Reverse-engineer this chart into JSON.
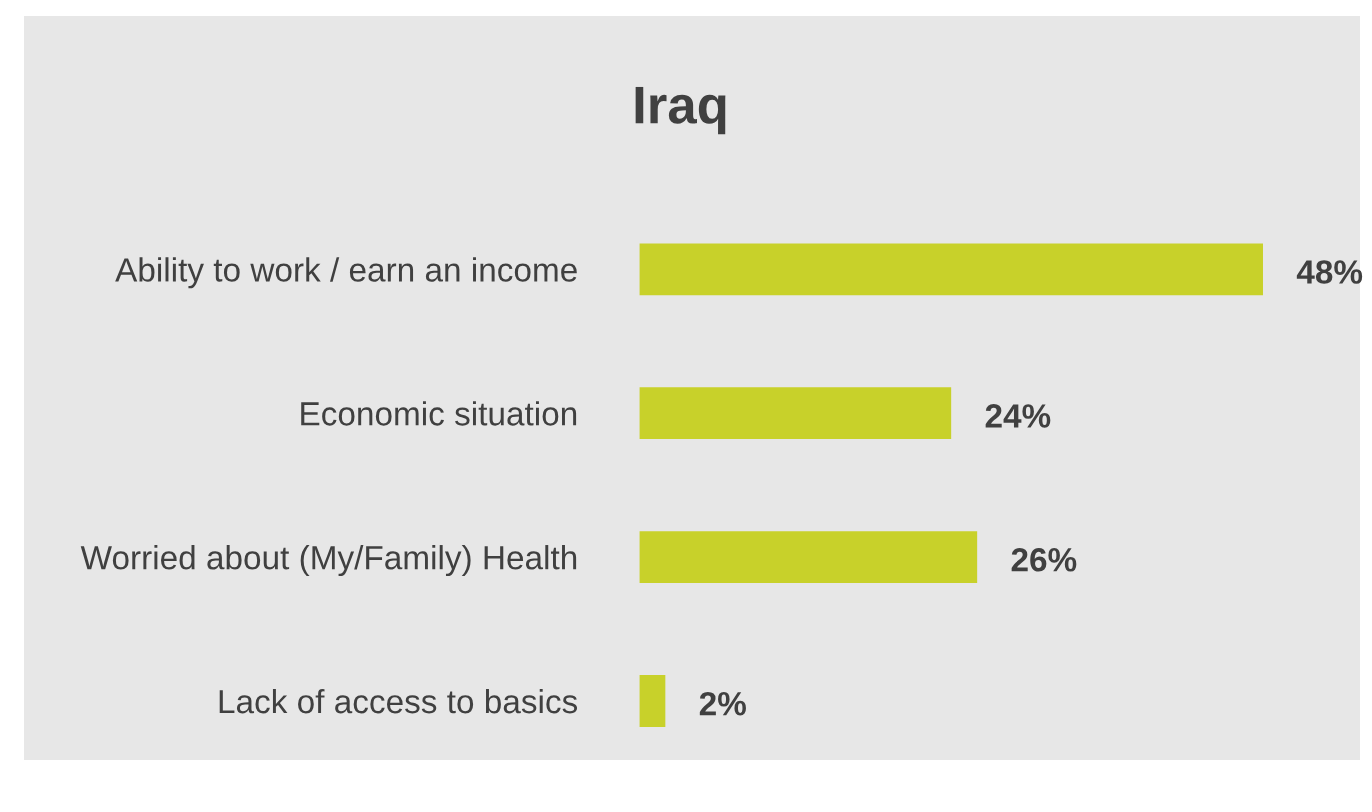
{
  "chart_data": {
    "type": "bar",
    "orientation": "horizontal",
    "title": "Iraq",
    "categories": [
      "Ability to work / earn an income",
      "Economic situation",
      "Worried about (My/Family) Health",
      "Lack of access to basics"
    ],
    "values": [
      48,
      24,
      26,
      2
    ],
    "value_labels": [
      "48%",
      "24%",
      "26%",
      "2%"
    ],
    "color": "#c8d12a",
    "tick_labels": "y",
    "grid": false,
    "legend": false
  }
}
